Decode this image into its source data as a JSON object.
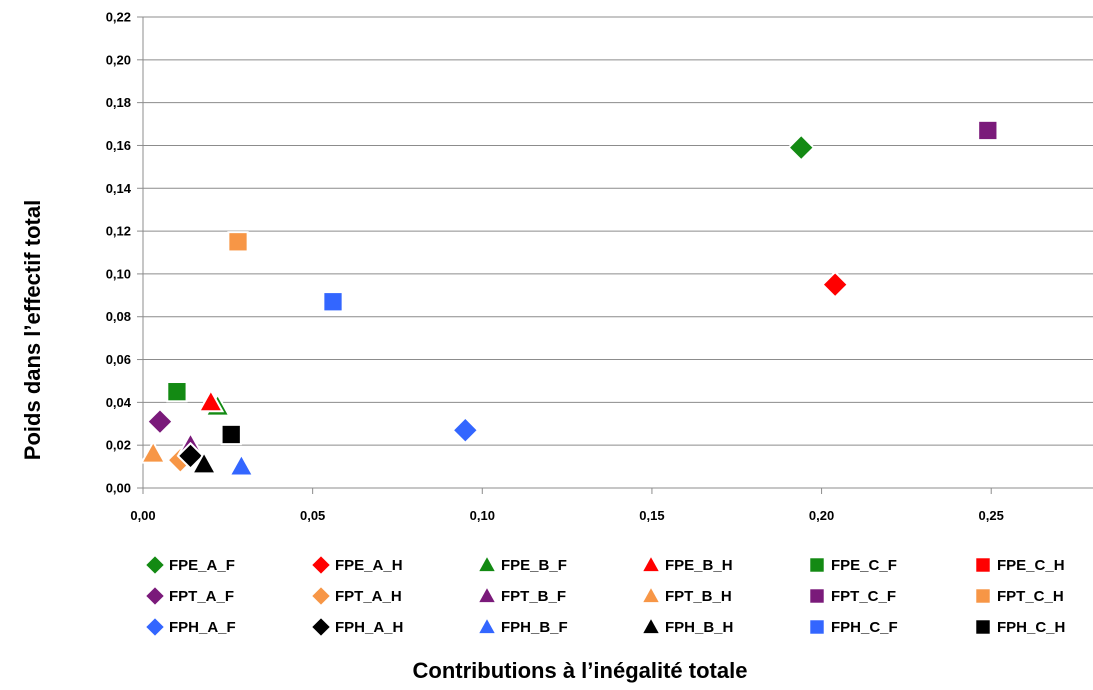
{
  "chart_data": {
    "type": "scatter",
    "title": "",
    "xlabel": "Contributions à l’inégalité totale",
    "ylabel": "Poids dans l’effectif total",
    "xlim": [
      0,
      0.28
    ],
    "ylim": [
      0,
      0.22
    ],
    "x_ticks": [
      {
        "value": 0,
        "label": "0,00"
      },
      {
        "value": 0.05,
        "label": "0,05"
      },
      {
        "value": 0.1,
        "label": "0,10"
      },
      {
        "value": 0.15,
        "label": "0,15"
      },
      {
        "value": 0.2,
        "label": "0,20"
      },
      {
        "value": 0.25,
        "label": "0,25"
      }
    ],
    "y_ticks": [
      {
        "value": 0,
        "label": "0,00"
      },
      {
        "value": 0.02,
        "label": "0,02"
      },
      {
        "value": 0.04,
        "label": "0,04"
      },
      {
        "value": 0.06,
        "label": "0,06"
      },
      {
        "value": 0.08,
        "label": "0,08"
      },
      {
        "value": 0.1,
        "label": "0,10"
      },
      {
        "value": 0.12,
        "label": "0,12"
      },
      {
        "value": 0.14,
        "label": "0,14"
      },
      {
        "value": 0.16,
        "label": "0,16"
      },
      {
        "value": 0.18,
        "label": "0,18"
      },
      {
        "value": 0.2,
        "label": "0,20"
      },
      {
        "value": 0.22,
        "label": "0,22"
      }
    ],
    "grid": "horizontal",
    "legend_position": "bottom",
    "series": [
      {
        "name": "FPE_A_F",
        "marker": "diamond",
        "color": "#138A13",
        "x": 0.194,
        "y": 0.159
      },
      {
        "name": "FPE_A_H",
        "marker": "diamond",
        "color": "#FF0000",
        "x": 0.204,
        "y": 0.095
      },
      {
        "name": "FPE_B_F",
        "marker": "triangle",
        "color": "#138A13",
        "x": 0.022,
        "y": 0.038
      },
      {
        "name": "FPE_B_H",
        "marker": "triangle",
        "color": "#FF0000",
        "x": 0.02,
        "y": 0.04
      },
      {
        "name": "FPE_C_F",
        "marker": "square",
        "color": "#138A13",
        "x": 0.01,
        "y": 0.045
      },
      {
        "name": "FPE_C_H",
        "marker": "square",
        "color": "#FF0000",
        "x": null,
        "y": null
      },
      {
        "name": "FPT_A_F",
        "marker": "diamond",
        "color": "#7A1A7A",
        "x": 0.005,
        "y": 0.031
      },
      {
        "name": "FPT_A_H",
        "marker": "diamond",
        "color": "#F79646",
        "x": 0.011,
        "y": 0.013
      },
      {
        "name": "FPT_B_F",
        "marker": "triangle",
        "color": "#7A1A7A",
        "x": 0.014,
        "y": 0.02
      },
      {
        "name": "FPT_B_H",
        "marker": "triangle",
        "color": "#F79646",
        "x": 0.003,
        "y": 0.016
      },
      {
        "name": "FPT_C_F",
        "marker": "square",
        "color": "#7A1A7A",
        "x": 0.249,
        "y": 0.167
      },
      {
        "name": "FPT_C_H",
        "marker": "square",
        "color": "#F79646",
        "x": 0.028,
        "y": 0.115
      },
      {
        "name": "FPH_A_F",
        "marker": "diamond",
        "color": "#3366FF",
        "x": 0.095,
        "y": 0.027
      },
      {
        "name": "FPH_A_H",
        "marker": "diamond",
        "color": "#000000",
        "x": 0.014,
        "y": 0.015
      },
      {
        "name": "FPH_B_F",
        "marker": "triangle",
        "color": "#3366FF",
        "x": 0.029,
        "y": 0.01
      },
      {
        "name": "FPH_B_H",
        "marker": "triangle",
        "color": "#000000",
        "x": 0.018,
        "y": 0.011
      },
      {
        "name": "FPH_C_F",
        "marker": "square",
        "color": "#3366FF",
        "x": 0.056,
        "y": 0.087
      },
      {
        "name": "FPH_C_H",
        "marker": "square",
        "color": "#000000",
        "x": 0.026,
        "y": 0.025
      }
    ]
  }
}
